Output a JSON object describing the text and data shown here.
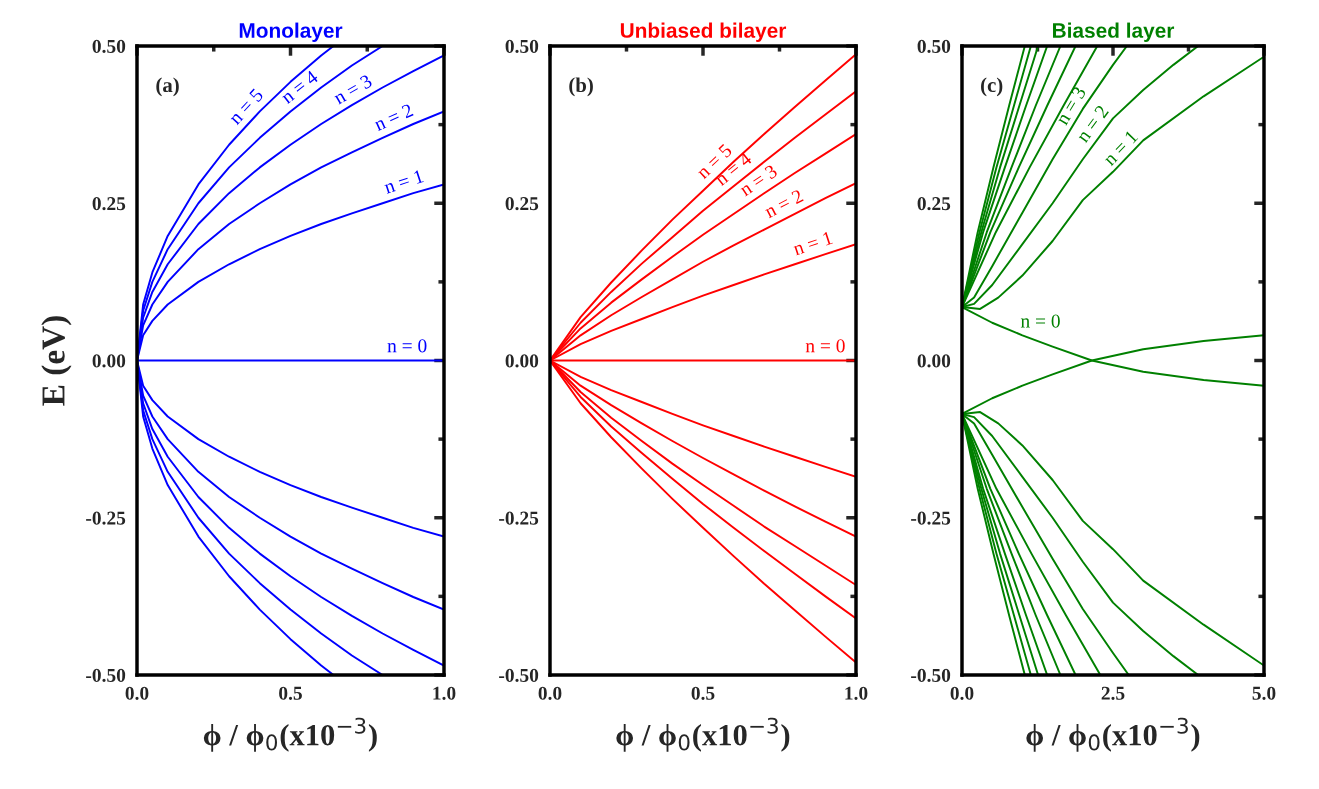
{
  "chart_data": [
    {
      "type": "line",
      "title": "Monolayer",
      "xlabel": "ϕ / ϕ$_{0}$(x10$^{−3}$)",
      "ylabel": "E (eV)",
      "xlim": [
        0,
        1
      ],
      "ylim": [
        -0.5,
        0.5
      ],
      "xticks": [
        {
          "value": 0,
          "label": "0.0"
        },
        {
          "value": 0.5,
          "label": "0.5"
        },
        {
          "value": 1,
          "label": "1.0"
        }
      ],
      "yticks": [
        {
          "value": -0.5,
          "label": "-0.50"
        },
        {
          "value": -0.25,
          "label": "-0.25"
        },
        {
          "value": 0,
          "label": "0.00"
        },
        {
          "value": 0.25,
          "label": "0.25"
        },
        {
          "value": 0.5,
          "label": "0.50"
        }
      ],
      "series": [
        {
          "color": "#0000ff",
          "x": [
            0,
            1
          ],
          "values": [
            0,
            0
          ]
        },
        {
          "color": "#0000ff",
          "x": [
            1.0,
            0.9,
            0.8,
            0.7,
            0.6,
            0.5,
            0.4,
            0.3,
            0.2,
            0.1,
            0.05,
            0.02,
            0,
            0.02,
            0.05,
            0.1,
            0.2,
            0.3,
            0.4,
            0.5,
            0.6,
            0.7,
            0.8,
            0.9,
            1.0
          ],
          "values": [
            -0.28,
            -0.266,
            -0.25,
            -0.234,
            -0.217,
            -0.198,
            -0.177,
            -0.153,
            -0.125,
            -0.089,
            -0.063,
            -0.04,
            0,
            0.04,
            0.063,
            0.089,
            0.125,
            0.153,
            0.177,
            0.198,
            0.217,
            0.234,
            0.25,
            0.266,
            0.28
          ]
        },
        {
          "color": "#0000ff",
          "x": [
            1.0,
            0.9,
            0.8,
            0.7,
            0.6,
            0.5,
            0.4,
            0.3,
            0.2,
            0.1,
            0.05,
            0.02,
            0,
            0.02,
            0.05,
            0.1,
            0.2,
            0.3,
            0.4,
            0.5,
            0.6,
            0.7,
            0.8,
            0.9,
            1.0
          ],
          "values": [
            -0.396,
            -0.376,
            -0.354,
            -0.331,
            -0.307,
            -0.28,
            -0.25,
            -0.217,
            -0.177,
            -0.125,
            -0.089,
            -0.056,
            0,
            0.056,
            0.089,
            0.125,
            0.177,
            0.217,
            0.25,
            0.28,
            0.307,
            0.331,
            0.354,
            0.376,
            0.396
          ]
        },
        {
          "color": "#0000ff",
          "x": [
            1.0,
            0.9,
            0.8,
            0.7,
            0.6,
            0.5,
            0.4,
            0.3,
            0.2,
            0.1,
            0.05,
            0.02,
            0,
            0.02,
            0.05,
            0.1,
            0.2,
            0.3,
            0.4,
            0.5,
            0.6,
            0.7,
            0.8,
            0.9,
            1.0
          ],
          "values": [
            -0.485,
            -0.46,
            -0.434,
            -0.406,
            -0.376,
            -0.343,
            -0.307,
            -0.266,
            -0.217,
            -0.153,
            -0.109,
            -0.068,
            0,
            0.068,
            0.109,
            0.153,
            0.217,
            0.266,
            0.307,
            0.343,
            0.376,
            0.406,
            0.434,
            0.46,
            0.485
          ]
        },
        {
          "color": "#0000ff",
          "x": [
            0.8,
            0.7,
            0.6,
            0.5,
            0.4,
            0.3,
            0.2,
            0.1,
            0.05,
            0.02,
            0,
            0.02,
            0.05,
            0.1,
            0.2,
            0.3,
            0.4,
            0.5,
            0.6,
            0.7,
            0.8
          ],
          "values": [
            -0.5,
            -0.469,
            -0.434,
            -0.396,
            -0.354,
            -0.307,
            -0.25,
            -0.177,
            -0.125,
            -0.079,
            0,
            0.079,
            0.125,
            0.177,
            0.25,
            0.307,
            0.354,
            0.396,
            0.434,
            0.469,
            0.5
          ]
        },
        {
          "color": "#0000ff",
          "x": [
            0.64,
            0.6,
            0.5,
            0.4,
            0.3,
            0.2,
            0.1,
            0.05,
            0.02,
            0,
            0.02,
            0.05,
            0.1,
            0.2,
            0.3,
            0.4,
            0.5,
            0.6,
            0.64
          ],
          "values": [
            -0.5,
            -0.485,
            -0.443,
            -0.396,
            -0.343,
            -0.28,
            -0.198,
            -0.14,
            -0.089,
            0,
            0.089,
            0.14,
            0.198,
            0.28,
            0.343,
            0.396,
            0.443,
            0.485,
            0.5
          ]
        }
      ],
      "annotations": [
        "(a)",
        {
          "text": "n = 5",
          "x": 0.38,
          "y": 0.386
        },
        {
          "text": "n = 4",
          "x": 0.55,
          "y": 0.415
        },
        {
          "text": "n = 3",
          "x": 0.72,
          "y": 0.41
        },
        {
          "text": "n = 2",
          "x": 0.85,
          "y": 0.365
        },
        {
          "text": "n = 1",
          "x": 0.88,
          "y": 0.262
        },
        {
          "text": "n = 0",
          "x": 0.88,
          "y": 0
        }
      ]
    },
    {
      "type": "line",
      "title": "Unbiased bilayer",
      "xlabel": "ϕ / ϕ$_{0}$(x10$^{−3}$)",
      "xlim": [
        0,
        1
      ],
      "ylim": [
        -0.5,
        0.5
      ],
      "xticks": [
        {
          "value": 0,
          "label": "0.0"
        },
        {
          "value": 0.5,
          "label": "0.5"
        },
        {
          "value": 1,
          "label": "1.0"
        }
      ],
      "yticks": [
        {
          "value": -0.5,
          "label": "-0.50"
        },
        {
          "value": -0.25,
          "label": "-0.25"
        },
        {
          "value": 0,
          "label": "0.00"
        },
        {
          "value": 0.25,
          "label": "0.25"
        },
        {
          "value": 0.5,
          "label": "0.50"
        }
      ],
      "series": [
        {
          "color": "#ff0000",
          "x": [
            0,
            1
          ],
          "values": [
            0,
            0
          ]
        },
        {
          "color": "#ff0000",
          "x": [
            0,
            0.1,
            0.2,
            0.3,
            0.4,
            0.5,
            0.6,
            0.7,
            0.8,
            0.9,
            1.0
          ],
          "values": [
            0,
            0.026,
            0.047,
            0.066,
            0.085,
            0.103,
            0.12,
            0.137,
            0.153,
            0.169,
            0.185
          ]
        },
        {
          "color": "#ff0000",
          "x": [
            0,
            0.1,
            0.2,
            0.3,
            0.4,
            0.5,
            0.6,
            0.7,
            0.8,
            0.9,
            1.0
          ],
          "values": [
            0,
            0.04,
            0.072,
            0.101,
            0.129,
            0.157,
            0.183,
            0.208,
            0.233,
            0.258,
            0.282
          ]
        },
        {
          "color": "#ff0000",
          "x": [
            0,
            0.1,
            0.2,
            0.3,
            0.4,
            0.5,
            0.6,
            0.7,
            0.8,
            0.9,
            1.0
          ],
          "values": [
            0,
            0.051,
            0.092,
            0.129,
            0.165,
            0.2,
            0.233,
            0.266,
            0.298,
            0.329,
            0.36
          ]
        },
        {
          "color": "#ff0000",
          "x": [
            0,
            0.1,
            0.2,
            0.3,
            0.4,
            0.5,
            0.6,
            0.7,
            0.8,
            0.9,
            1.0
          ],
          "values": [
            0,
            0.06,
            0.109,
            0.154,
            0.196,
            0.238,
            0.277,
            0.316,
            0.354,
            0.391,
            0.428
          ]
        },
        {
          "color": "#ff0000",
          "x": [
            0,
            0.1,
            0.2,
            0.3,
            0.4,
            0.5,
            0.6,
            0.7,
            0.8,
            0.9,
            1.0
          ],
          "values": [
            0,
            0.069,
            0.124,
            0.175,
            0.224,
            0.27,
            0.316,
            0.36,
            0.403,
            0.445,
            0.487
          ]
        },
        {
          "color": "#ff0000",
          "x": [
            0,
            0.1,
            0.2,
            0.3,
            0.4,
            0.5,
            0.6,
            0.7,
            0.8,
            0.9,
            1.0
          ],
          "values": [
            0,
            -0.026,
            -0.047,
            -0.066,
            -0.085,
            -0.103,
            -0.12,
            -0.137,
            -0.153,
            -0.169,
            -0.185
          ]
        },
        {
          "color": "#ff0000",
          "x": [
            0,
            0.1,
            0.2,
            0.3,
            0.4,
            0.5,
            0.6,
            0.7,
            0.8,
            0.9,
            1.0
          ],
          "values": [
            0,
            -0.04,
            -0.071,
            -0.1,
            -0.128,
            -0.155,
            -0.181,
            -0.207,
            -0.232,
            -0.256,
            -0.28
          ]
        },
        {
          "color": "#ff0000",
          "x": [
            0,
            0.1,
            0.2,
            0.3,
            0.4,
            0.5,
            0.6,
            0.7,
            0.8,
            0.9,
            1.0
          ],
          "values": [
            0,
            -0.05,
            -0.091,
            -0.128,
            -0.164,
            -0.198,
            -0.231,
            -0.264,
            -0.295,
            -0.326,
            -0.357
          ]
        },
        {
          "color": "#ff0000",
          "x": [
            0,
            0.1,
            0.2,
            0.3,
            0.4,
            0.5,
            0.6,
            0.7,
            0.8,
            0.9,
            1.0
          ],
          "values": [
            0,
            -0.058,
            -0.105,
            -0.147,
            -0.188,
            -0.228,
            -0.266,
            -0.303,
            -0.339,
            -0.375,
            -0.41
          ]
        },
        {
          "color": "#ff0000",
          "x": [
            0,
            0.1,
            0.2,
            0.3,
            0.4,
            0.5,
            0.6,
            0.7,
            0.8,
            0.9,
            1.0
          ],
          "values": [
            0,
            -0.068,
            -0.122,
            -0.172,
            -0.22,
            -0.266,
            -0.311,
            -0.355,
            -0.397,
            -0.439,
            -0.48
          ]
        }
      ],
      "annotations": [
        "(b)",
        {
          "text": "n = 5",
          "x": 0.56,
          "y": 0.298
        },
        {
          "text": "n = 4",
          "x": 0.62,
          "y": 0.285
        },
        {
          "text": "n = 3",
          "x": 0.7,
          "y": 0.266
        },
        {
          "text": "n = 2",
          "x": 0.78,
          "y": 0.228
        },
        {
          "text": "n = 1",
          "x": 0.87,
          "y": 0.164
        },
        {
          "text": "n = 0",
          "x": 0.9,
          "y": 0
        }
      ]
    },
    {
      "type": "line",
      "title": "Biased layer",
      "xlabel": "ϕ / ϕ$_{0}$(x10$^{−3}$)",
      "xlim": [
        0,
        5
      ],
      "ylim": [
        -0.5,
        0.5
      ],
      "xticks": [
        {
          "value": 0,
          "label": "0.0"
        },
        {
          "value": 2.5,
          "label": "2.5"
        },
        {
          "value": 5,
          "label": "5.0"
        }
      ],
      "yticks": [
        {
          "value": -0.5,
          "label": "-0.50"
        },
        {
          "value": -0.25,
          "label": "-0.25"
        },
        {
          "value": 0,
          "label": "0.00"
        },
        {
          "value": 0.25,
          "label": "0.25"
        },
        {
          "value": 0.5,
          "label": "0.50"
        }
      ],
      "series": [
        {
          "color": "#008000",
          "x": [
            0,
            0.5,
            1,
            1.5,
            2.15,
            3,
            4,
            5
          ],
          "values": [
            0.085,
            0.06,
            0.04,
            0.022,
            0,
            -0.018,
            -0.031,
            -0.04
          ]
        },
        {
          "color": "#008000",
          "x": [
            0,
            0.5,
            1,
            1.5,
            2.15,
            3,
            4,
            5
          ],
          "values": [
            -0.085,
            -0.06,
            -0.04,
            -0.022,
            0,
            0.018,
            0.031,
            0.04
          ]
        },
        {
          "color": "#008000",
          "x": [
            0,
            0.3,
            0.6,
            1,
            1.5,
            2,
            2.5,
            3,
            4,
            5
          ],
          "values": [
            0.085,
            0.082,
            0.1,
            0.135,
            0.19,
            0.255,
            0.3,
            0.35,
            0.42,
            0.483
          ]
        },
        {
          "color": "#008000",
          "x": [
            0,
            0.2,
            0.5,
            1,
            1.5,
            2,
            2.5,
            3,
            3.5,
            3.91
          ],
          "values": [
            0.085,
            0.09,
            0.12,
            0.185,
            0.25,
            0.32,
            0.385,
            0.43,
            0.47,
            0.5
          ]
        },
        {
          "color": "#008000",
          "x": [
            0,
            0.2,
            0.5,
            1,
            1.5,
            2,
            2.5,
            2.73
          ],
          "values": [
            0.085,
            0.1,
            0.15,
            0.235,
            0.32,
            0.4,
            0.47,
            0.5
          ]
        },
        {
          "color": "#008000",
          "x": [
            0,
            0.56,
            1.12,
            1.68,
            2.24
          ],
          "values": [
            0.085,
            0.204,
            0.307,
            0.405,
            0.5
          ]
        },
        {
          "color": "#008000",
          "x": [
            0,
            0.47,
            0.94,
            1.41,
            1.88
          ],
          "values": [
            0.085,
            0.204,
            0.307,
            0.405,
            0.5
          ]
        },
        {
          "color": "#008000",
          "x": [
            0,
            0.41,
            0.82,
            1.22,
            1.63
          ],
          "values": [
            0.085,
            0.204,
            0.307,
            0.405,
            0.5
          ]
        },
        {
          "color": "#008000",
          "x": [
            0,
            0.35,
            0.71,
            1.06,
            1.41
          ],
          "values": [
            0.085,
            0.204,
            0.307,
            0.405,
            0.5
          ]
        },
        {
          "color": "#008000",
          "x": [
            0,
            0.32,
            0.63,
            0.95,
            1.26
          ],
          "values": [
            0.085,
            0.204,
            0.307,
            0.405,
            0.5
          ]
        },
        {
          "color": "#008000",
          "x": [
            0,
            0.29,
            0.57,
            0.86,
            1.14
          ],
          "values": [
            0.085,
            0.204,
            0.307,
            0.405,
            0.5
          ]
        },
        {
          "color": "#008000",
          "x": [
            0,
            0.26,
            0.52,
            0.78,
            1.04
          ],
          "values": [
            0.085,
            0.204,
            0.307,
            0.405,
            0.5
          ]
        },
        {
          "color": "#008000",
          "x": [
            0,
            0.3,
            0.6,
            1,
            1.5,
            2,
            2.5,
            3,
            4,
            5
          ],
          "values": [
            -0.085,
            -0.082,
            -0.1,
            -0.135,
            -0.19,
            -0.255,
            -0.3,
            -0.35,
            -0.42,
            -0.485
          ]
        },
        {
          "color": "#008000",
          "x": [
            0,
            0.2,
            0.5,
            1,
            1.5,
            2,
            2.5,
            3,
            3.5,
            3.91
          ],
          "values": [
            -0.085,
            -0.09,
            -0.12,
            -0.185,
            -0.25,
            -0.32,
            -0.385,
            -0.43,
            -0.47,
            -0.5
          ]
        },
        {
          "color": "#008000",
          "x": [
            0,
            0.2,
            0.5,
            1,
            1.5,
            2,
            2.5,
            2.76
          ],
          "values": [
            -0.085,
            -0.1,
            -0.15,
            -0.233,
            -0.315,
            -0.395,
            -0.465,
            -0.5
          ]
        },
        {
          "color": "#008000",
          "x": [
            0,
            0.57,
            1.15,
            1.72,
            2.29
          ],
          "values": [
            -0.085,
            -0.204,
            -0.307,
            -0.405,
            -0.5
          ]
        },
        {
          "color": "#008000",
          "x": [
            0,
            0.47,
            0.94,
            1.41,
            1.88
          ],
          "values": [
            -0.085,
            -0.204,
            -0.307,
            -0.405,
            -0.5
          ]
        },
        {
          "color": "#008000",
          "x": [
            0,
            0.41,
            0.82,
            1.22,
            1.63
          ],
          "values": [
            -0.085,
            -0.204,
            -0.307,
            -0.405,
            -0.5
          ]
        },
        {
          "color": "#008000",
          "x": [
            0,
            0.35,
            0.71,
            1.06,
            1.41
          ],
          "values": [
            -0.085,
            -0.204,
            -0.307,
            -0.405,
            -0.5
          ]
        },
        {
          "color": "#008000",
          "x": [
            0,
            0.32,
            0.63,
            0.95,
            1.26
          ],
          "values": [
            -0.085,
            -0.204,
            -0.307,
            -0.405,
            -0.5
          ]
        },
        {
          "color": "#008000",
          "x": [
            0,
            0.29,
            0.57,
            0.86,
            1.14
          ],
          "values": [
            -0.085,
            -0.204,
            -0.307,
            -0.405,
            -0.5
          ]
        },
        {
          "color": "#008000",
          "x": [
            0,
            0.26,
            0.52,
            0.78,
            1.04
          ],
          "values": [
            -0.085,
            -0.204,
            -0.307,
            -0.405,
            -0.5
          ]
        }
      ],
      "annotations": [
        "(c)",
        {
          "text": "n = 3",
          "x": 1.95,
          "y": 0.39
        },
        {
          "text": "n = 2",
          "x": 2.3,
          "y": 0.36
        },
        {
          "text": "n = 1",
          "x": 2.75,
          "y": 0.32
        },
        "n = 0"
      ]
    }
  ]
}
